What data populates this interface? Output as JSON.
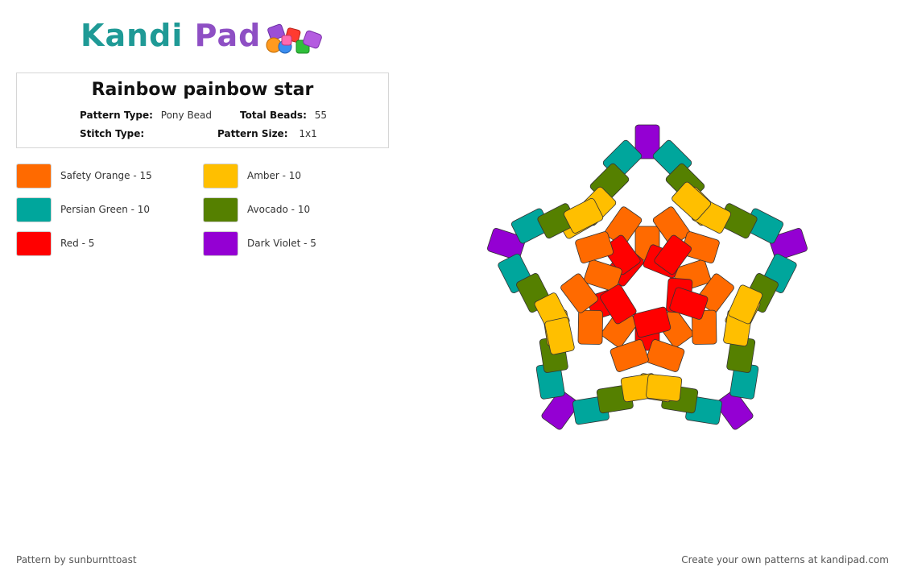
{
  "brand": {
    "name_part1": "Kandi",
    "name_part2": "Pad"
  },
  "pattern": {
    "title": "Rainbow painbow star",
    "pattern_type_label": "Pattern Type:",
    "pattern_type_value": "Pony Bead",
    "total_beads_label": "Total Beads:",
    "total_beads_value": "55",
    "stitch_type_label": "Stitch Type:",
    "stitch_type_value": "",
    "pattern_size_label": "Pattern Size:",
    "pattern_size_value": "1x1"
  },
  "legend": [
    {
      "label": "Safety Orange - 15",
      "color": "#ff6a00"
    },
    {
      "label": "Amber - 10",
      "color": "#ffbf00"
    },
    {
      "label": "Persian Green - 10",
      "color": "#00a69c"
    },
    {
      "label": "Avocado - 10",
      "color": "#558000"
    },
    {
      "label": "Red - 5",
      "color": "#ff0000"
    },
    {
      "label": "Dark Violet - 5",
      "color": "#9400d3"
    }
  ],
  "footer": {
    "credit": "Pattern by sunburnttoast",
    "cta": "Create your own patterns at kandipad.com"
  }
}
